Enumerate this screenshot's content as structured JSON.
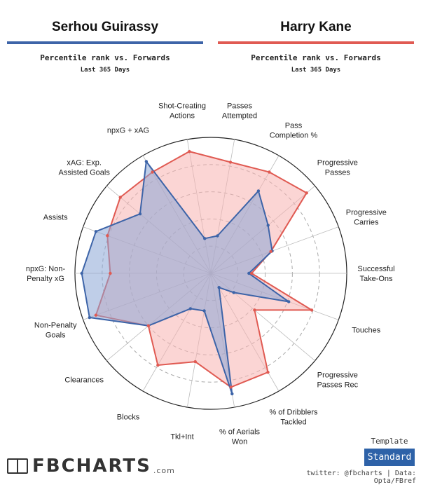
{
  "colors": {
    "player1": "#3d64a8",
    "player2": "#e05a52",
    "fill1": "#8aa6d6",
    "fill2": "#f7b3b0"
  },
  "header": {
    "player1": {
      "name": "Serhou Guirassy",
      "subtitle": "Percentile rank vs. Forwards",
      "period": "Last 365 Days"
    },
    "player2": {
      "name": "Harry Kane",
      "subtitle": "Percentile rank vs. Forwards",
      "period": "Last 365 Days"
    }
  },
  "chart_data": {
    "type": "radar",
    "range": [
      0,
      100
    ],
    "grid": "dashed rings at 20, 40, 60, 80",
    "categories": [
      [
        "Passes",
        "Attempted"
      ],
      [
        "Pass",
        "Completion %"
      ],
      [
        "Progressive",
        "Passes"
      ],
      [
        "Progressive",
        "Carries"
      ],
      [
        "Successful",
        "Take-Ons"
      ],
      [
        "Touches"
      ],
      [
        "Progressive",
        "Passes Rec"
      ],
      [
        "% of Dribblers",
        "Tackled"
      ],
      [
        "% of Aerials",
        "Won"
      ],
      [
        "Tkl+Int"
      ],
      [
        "Blocks"
      ],
      [
        "Clearances"
      ],
      [
        "Non-Penalty",
        "Goals"
      ],
      [
        "npxG: Non-",
        "Penalty xG"
      ],
      [
        "Assists"
      ],
      [
        "xAG: Exp.",
        "Assisted Goals"
      ],
      [
        "npxG + xAG"
      ],
      [
        "Shot-Creating",
        "Actions"
      ]
    ],
    "series": [
      {
        "name": "Serhou Guirassy",
        "values": [
          28,
          70,
          55,
          48,
          28,
          61,
          22,
          12,
          90,
          28,
          30,
          60,
          95,
          95,
          90,
          68,
          95,
          26
        ]
      },
      {
        "name": "Harry Kane",
        "values": [
          83,
          86,
          92,
          47,
          30,
          79,
          42,
          84,
          85,
          66,
          78,
          60,
          90,
          74,
          81,
          87,
          86,
          91
        ]
      }
    ]
  },
  "footer": {
    "logo": "FBCHARTS",
    "logo_suffix": ".com",
    "template_label": "Template",
    "template_value": "Standard",
    "credits": "twitter: @fbcharts | Data: Opta/FBref"
  }
}
